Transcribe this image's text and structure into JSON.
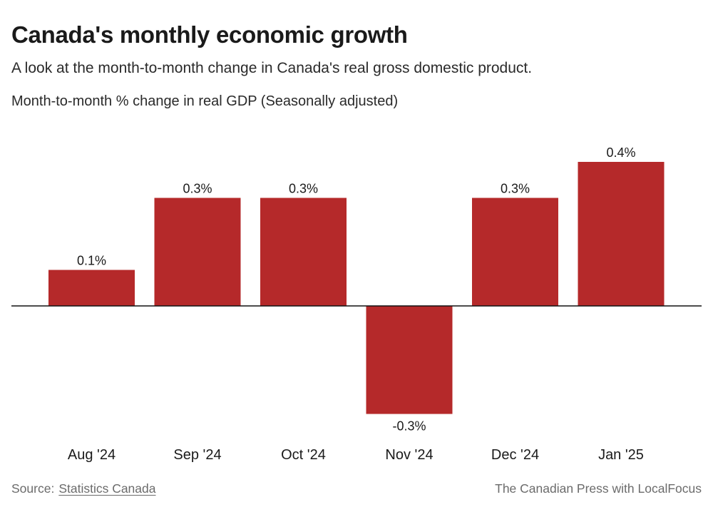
{
  "header": {
    "title": "Canada's monthly economic growth",
    "subtitle": "A look at the month-to-month change in Canada's real gross domestic product."
  },
  "chart_data": {
    "type": "bar",
    "title": "Canada's monthly economic growth",
    "ylabel": "Month-to-month % change in real GDP (Seasonally adjusted)",
    "xlabel": "",
    "categories": [
      "Aug '24",
      "Sep '24",
      "Oct '24",
      "Nov '24",
      "Dec '24",
      "Jan '25"
    ],
    "values": [
      0.1,
      0.3,
      0.3,
      -0.3,
      0.3,
      0.4
    ],
    "value_labels": [
      "0.1%",
      "0.3%",
      "0.3%",
      "-0.3%",
      "0.3%",
      "0.4%"
    ],
    "ylim": [
      -0.3,
      0.4
    ],
    "grid": false,
    "bar_color": "#b5292a",
    "zero_line_color": "#111111"
  },
  "footer": {
    "source_label": "Source:",
    "source_link": "Statistics Canada",
    "credit": "The Canadian Press with LocalFocus"
  }
}
